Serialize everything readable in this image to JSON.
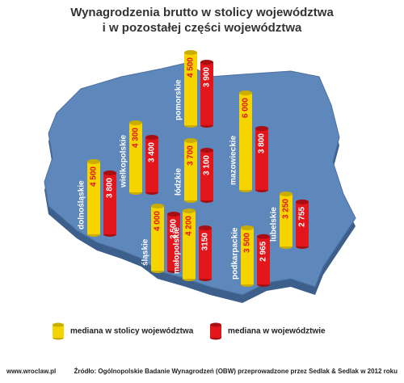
{
  "chart_data": {
    "type": "cylinder-map",
    "title": [
      "Wynagrodzenia brutto w stolicy województwa",
      "i w pozostałej części województwa"
    ],
    "categories": [
      "pomorskie",
      "mazowieckie",
      "wielkopolskie",
      "łódzkie",
      "dolnośląskie",
      "śląskie",
      "małopolskie",
      "podkarpackie",
      "lubelskie"
    ],
    "series": [
      {
        "name": "mediana w stolicy województwa",
        "color": "#f5d400",
        "values": [
          4500,
          6000,
          4300,
          3700,
          4500,
          4000,
          4200,
          3500,
          3250
        ],
        "value_labels": [
          "4 500",
          "6 000",
          "4 300",
          "3 700",
          "4 500",
          "4 000",
          "4 200",
          "3 500",
          "3 250"
        ]
      },
      {
        "name": "mediana w województwie",
        "color": "#e2161b",
        "values": [
          3900,
          3800,
          3400,
          3100,
          3800,
          3500,
          3150,
          2965,
          2755
        ],
        "value_labels": [
          "3 900",
          "3 800",
          "3 400",
          "3 100",
          "3 800",
          "3 500",
          "3150",
          "2 965",
          "2 755"
        ]
      }
    ],
    "footer": {
      "site": "www.wroclaw.pl",
      "source": "Źródło: Ogólnopolskie Badanie Wynagrodzeń (OBW) przeprowadzone przez Sedlak & Sedlak w 2012 roku"
    }
  }
}
